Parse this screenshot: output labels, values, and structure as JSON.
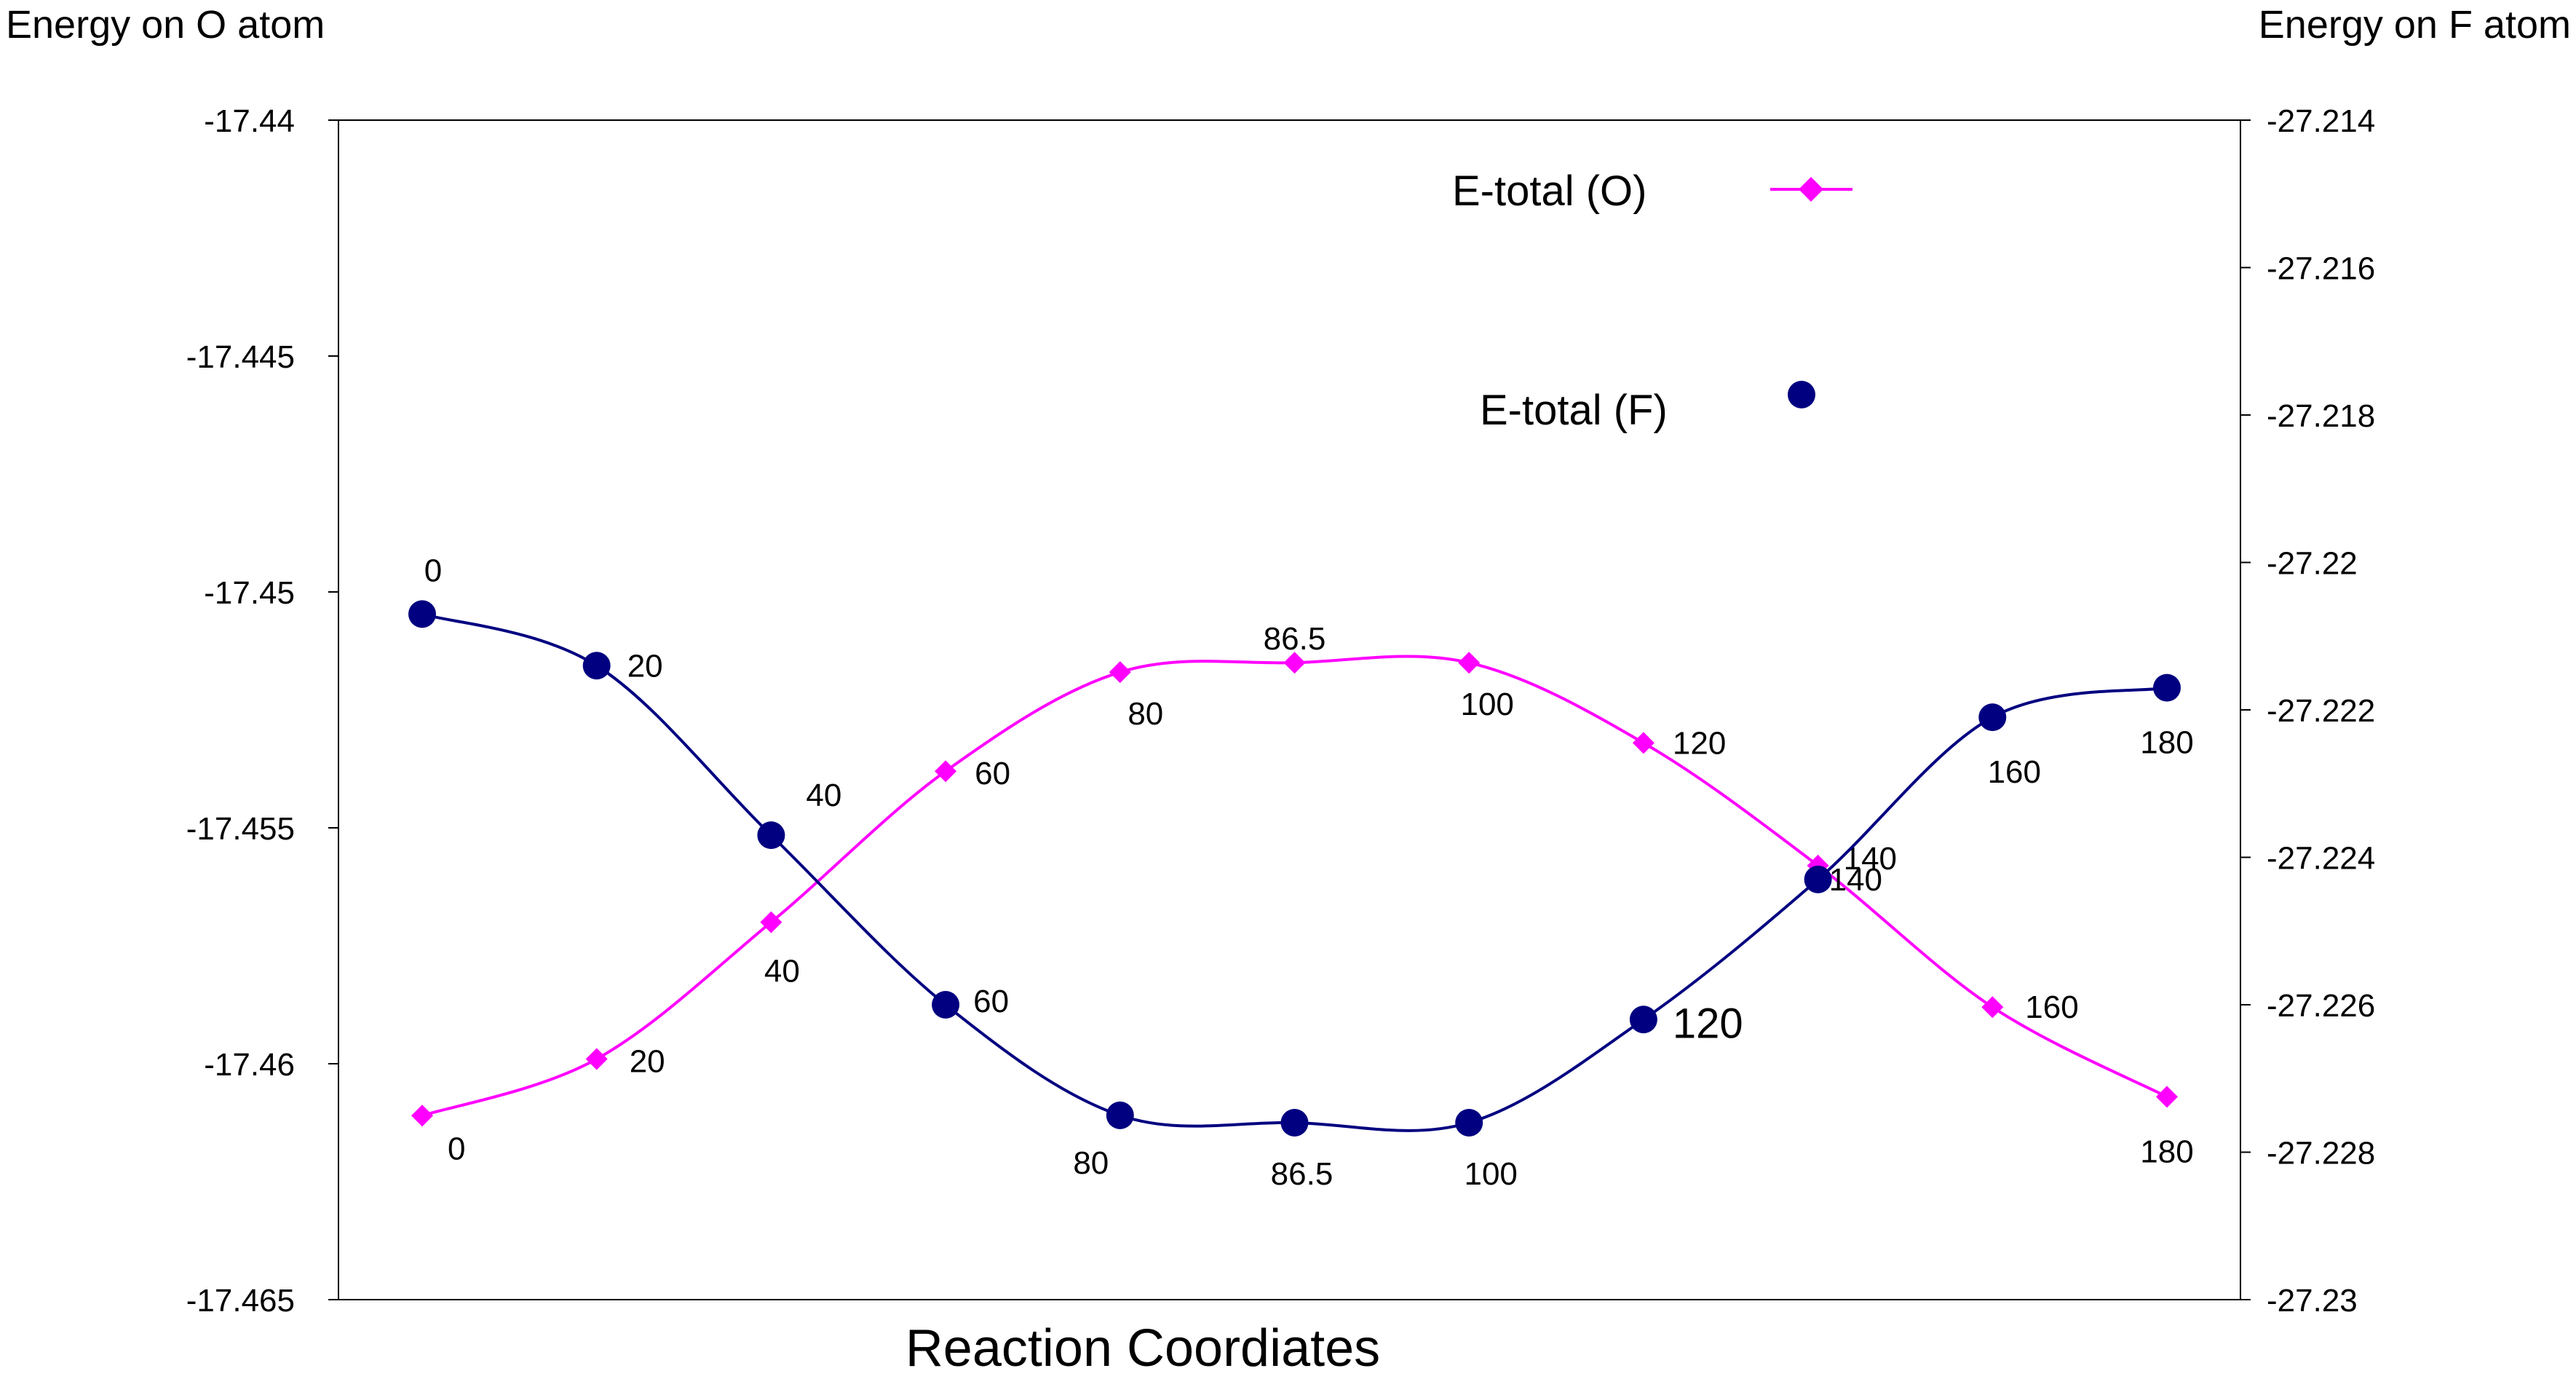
{
  "chart_data": {
    "type": "line",
    "xlabel": "Reaction Coordiates",
    "ylabel_left": "Energy on O atom",
    "ylabel_right": "Energy on F atom",
    "ylim_left": [
      -17.465,
      -17.44
    ],
    "ylim_right": [
      -27.23,
      -27.214
    ],
    "yticks_left": [
      "-17.44",
      "-17.445",
      "-17.45",
      "-17.455",
      "-17.46",
      "-17.465"
    ],
    "yticks_right": [
      "-27.214",
      "-27.216",
      "-27.218",
      "-27.22",
      "-27.222",
      "-27.224",
      "-27.226",
      "-27.228",
      "-27.23"
    ],
    "x": [
      0,
      20,
      40,
      60,
      80,
      86.5,
      100,
      120,
      140,
      160,
      180
    ],
    "grid": false,
    "legend_position": "top-right",
    "series": [
      {
        "name": "E-total (O)",
        "axis": "left",
        "color": "#ff00ff",
        "marker": "diamond",
        "values": [
          -17.4611,
          -17.4599,
          -17.457,
          -17.4538,
          -17.4517,
          -17.4515,
          -17.4515,
          -17.4532,
          -17.4558,
          -17.4588,
          -17.4607
        ],
        "labels": [
          "0",
          "20",
          "40",
          "60",
          "80",
          "86.5",
          "100",
          "120",
          "140",
          "160",
          "180"
        ]
      },
      {
        "name": "E-total (F)",
        "axis": "right",
        "color": "#000080",
        "marker": "circle",
        "values": [
          -27.2207,
          -27.2214,
          -27.2237,
          -27.226,
          -27.2275,
          -27.2276,
          -27.2276,
          -27.2262,
          -27.2243,
          -27.2221,
          -27.2217
        ],
        "labels": [
          "0",
          "20",
          "40",
          "60",
          "80",
          "86.5",
          "100",
          "120",
          "140",
          "160",
          "180"
        ]
      }
    ]
  }
}
